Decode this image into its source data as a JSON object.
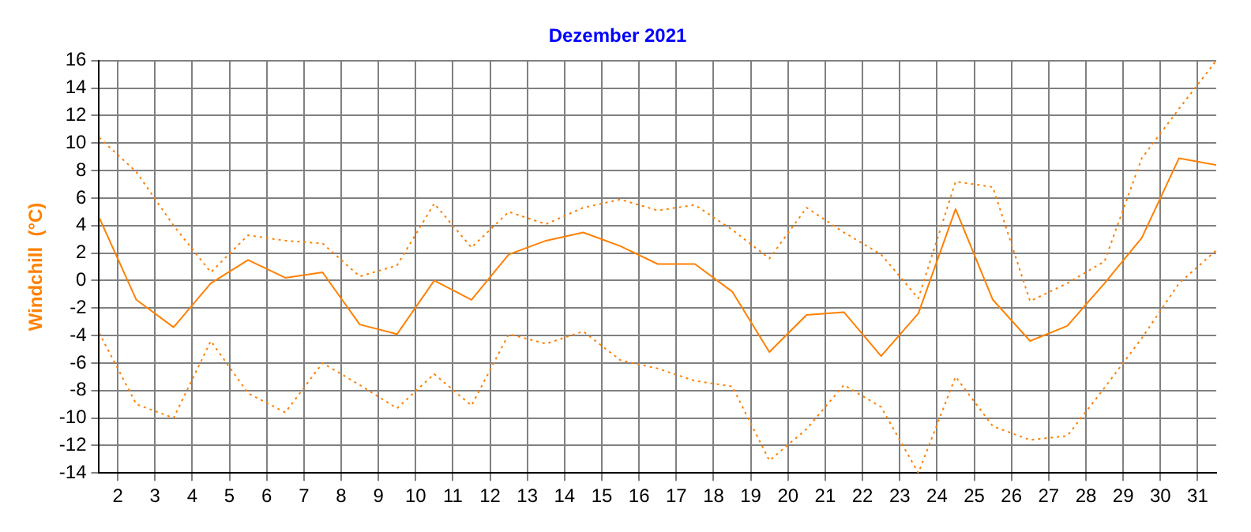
{
  "chart_data": {
    "type": "line",
    "title": "Dezember 2021",
    "ylabel": "Windchill  (°C)",
    "x": [
      1.5,
      2.5,
      3.5,
      4.5,
      5.5,
      6.5,
      7.5,
      8.5,
      9.5,
      10.5,
      11.5,
      12.5,
      13.5,
      14.5,
      15.5,
      16.5,
      17.5,
      18.5,
      19.5,
      20.5,
      21.5,
      22.5,
      23.5,
      24.5,
      25.5,
      26.5,
      27.5,
      28.5,
      29.5,
      30.5,
      31.5
    ],
    "series": [
      {
        "color": "#ff8000",
        "line_style": "dotted",
        "values": [
          10.4,
          7.9,
          4.0,
          0.6,
          3.3,
          2.9,
          2.7,
          0.3,
          1.1,
          5.6,
          2.4,
          5.0,
          4.1,
          5.3,
          5.9,
          5.1,
          5.5,
          3.7,
          1.6,
          5.3,
          3.5,
          1.9,
          -1.3,
          7.2,
          6.8,
          -1.5,
          -0.2,
          1.4,
          8.9,
          12.5,
          16
        ]
      },
      {
        "color": "#ff8000",
        "line_style": "solid",
        "values": [
          4.6,
          -1.4,
          -3.4,
          -0.2,
          1.5,
          0.2,
          0.6,
          -3.2,
          -3.9,
          0.0,
          -1.4,
          1.9,
          2.9,
          3.5,
          2.5,
          1.2,
          1.2,
          -0.8,
          -5.2,
          -2.5,
          -2.3,
          -5.5,
          -2.4,
          5.2,
          -1.4,
          -4.4,
          -3.3,
          -0.2,
          3.1,
          8.9,
          8.4
        ]
      },
      {
        "color": "#ff8000",
        "line_style": "dotted",
        "values": [
          -3.8,
          -9.0,
          -10.0,
          -4.4,
          -8.2,
          -9.6,
          -6.0,
          -7.6,
          -9.3,
          -6.8,
          -9.1,
          -3.9,
          -4.6,
          -3.7,
          -5.8,
          -6.4,
          -7.3,
          -7.7,
          -13.1,
          -10.8,
          -7.6,
          -9.2,
          -14,
          -7.0,
          -10.6,
          -11.6,
          -11.3,
          -7.8,
          -4.2,
          -0.2,
          2.2
        ]
      }
    ],
    "xlim": [
      1.5,
      31.5
    ],
    "xticks": [
      2,
      3,
      4,
      5,
      6,
      7,
      8,
      9,
      10,
      11,
      12,
      13,
      14,
      15,
      16,
      17,
      18,
      19,
      20,
      21,
      22,
      23,
      24,
      25,
      26,
      27,
      28,
      29,
      30,
      31
    ],
    "ylim": [
      -14,
      16
    ],
    "yticks": [
      -14,
      -12,
      -10,
      -8,
      -6,
      -4,
      -2,
      0,
      2,
      4,
      6,
      8,
      10,
      12,
      14,
      16
    ],
    "grid": true,
    "marker": "none",
    "legend": false
  }
}
